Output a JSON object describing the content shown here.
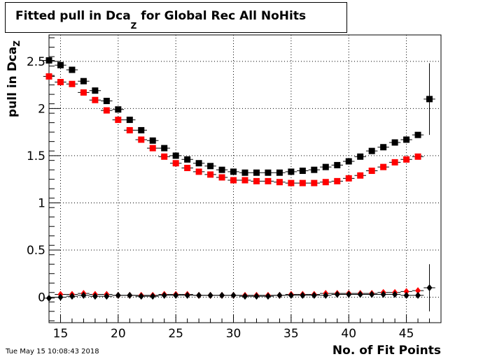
{
  "title": {
    "main": "Fitted pull in Dca",
    "sub": "Z",
    "rest": " for Global Rec All NoHits"
  },
  "ylabel": {
    "main": "pull in Dca",
    "sub": "Z"
  },
  "xlabel": "No. of Fit Points",
  "timestamp": "Tue May 15 10:08:43 2018",
  "chart_data": {
    "type": "scatter",
    "xlim": [
      14,
      48
    ],
    "ylim": [
      -0.27,
      2.78
    ],
    "xticks": [
      15,
      20,
      25,
      30,
      35,
      40,
      45
    ],
    "yticks": [
      0,
      0.5,
      1,
      1.5,
      2,
      2.5
    ],
    "ytick_labels": [
      "0",
      "0.5",
      "1",
      "1.5",
      "2",
      "2.5"
    ],
    "grid": true,
    "series": [
      {
        "color": "#000000",
        "marker": "square",
        "x": [
          14,
          15,
          16,
          17,
          18,
          19,
          20,
          21,
          22,
          23,
          24,
          25,
          26,
          27,
          28,
          29,
          30,
          31,
          32,
          33,
          34,
          35,
          36,
          37,
          38,
          39,
          40,
          41,
          42,
          43,
          44,
          45,
          46,
          47
        ],
        "y": [
          2.51,
          2.46,
          2.41,
          2.29,
          2.19,
          2.08,
          1.99,
          1.88,
          1.77,
          1.66,
          1.58,
          1.5,
          1.46,
          1.42,
          1.39,
          1.35,
          1.33,
          1.32,
          1.32,
          1.32,
          1.32,
          1.33,
          1.34,
          1.35,
          1.38,
          1.4,
          1.44,
          1.49,
          1.55,
          1.59,
          1.64,
          1.67,
          1.72,
          2.1
        ],
        "yerr": [
          0,
          0,
          0,
          0,
          0,
          0,
          0,
          0,
          0,
          0,
          0,
          0,
          0,
          0,
          0,
          0,
          0,
          0,
          0,
          0,
          0,
          0,
          0,
          0,
          0,
          0,
          0,
          0,
          0,
          0,
          0,
          0,
          0,
          0.38
        ]
      },
      {
        "color": "#ff0000",
        "marker": "square",
        "x": [
          14,
          15,
          16,
          17,
          18,
          19,
          20,
          21,
          22,
          23,
          24,
          25,
          26,
          27,
          28,
          29,
          30,
          31,
          32,
          33,
          34,
          35,
          36,
          37,
          38,
          39,
          40,
          41,
          42,
          43,
          44,
          45,
          46
        ],
        "y": [
          2.34,
          2.28,
          2.26,
          2.17,
          2.09,
          1.98,
          1.88,
          1.77,
          1.67,
          1.58,
          1.49,
          1.42,
          1.37,
          1.33,
          1.3,
          1.27,
          1.24,
          1.24,
          1.23,
          1.23,
          1.22,
          1.21,
          1.21,
          1.21,
          1.22,
          1.23,
          1.26,
          1.29,
          1.34,
          1.38,
          1.43,
          1.46,
          1.49
        ],
        "yerr": []
      },
      {
        "color": "#ff0000",
        "marker": "diamond",
        "x": [
          15,
          16,
          17,
          18,
          19,
          20,
          21,
          22,
          23,
          24,
          25,
          26,
          27,
          28,
          29,
          30,
          31,
          32,
          33,
          34,
          35,
          36,
          37,
          38,
          39,
          40,
          41,
          42,
          43,
          44,
          45,
          46
        ],
        "y": [
          0.03,
          0.03,
          0.04,
          0.03,
          0.03,
          0.02,
          0.02,
          0.02,
          0.02,
          0.03,
          0.03,
          0.03,
          0.02,
          0.02,
          0.02,
          0.02,
          0.02,
          0.02,
          0.02,
          0.02,
          0.03,
          0.03,
          0.03,
          0.04,
          0.04,
          0.04,
          0.04,
          0.04,
          0.05,
          0.05,
          0.06,
          0.07
        ],
        "yerr": []
      },
      {
        "color": "#000000",
        "marker": "diamond",
        "x": [
          14,
          15,
          16,
          17,
          18,
          19,
          20,
          21,
          22,
          23,
          24,
          25,
          26,
          27,
          28,
          29,
          30,
          31,
          32,
          33,
          34,
          35,
          36,
          37,
          38,
          39,
          40,
          41,
          42,
          43,
          44,
          45,
          46,
          47
        ],
        "y": [
          -0.01,
          0.0,
          0.01,
          0.02,
          0.01,
          0.01,
          0.02,
          0.02,
          0.01,
          0.01,
          0.02,
          0.02,
          0.02,
          0.02,
          0.02,
          0.02,
          0.02,
          0.01,
          0.01,
          0.01,
          0.02,
          0.02,
          0.02,
          0.02,
          0.02,
          0.03,
          0.03,
          0.03,
          0.03,
          0.03,
          0.03,
          0.02,
          0.02,
          0.1
        ],
        "yerr": [
          0,
          0,
          0,
          0,
          0,
          0,
          0,
          0,
          0,
          0,
          0,
          0,
          0,
          0,
          0,
          0,
          0,
          0,
          0,
          0,
          0,
          0,
          0,
          0,
          0,
          0,
          0,
          0,
          0,
          0,
          0,
          0,
          0,
          0.25
        ]
      }
    ]
  }
}
